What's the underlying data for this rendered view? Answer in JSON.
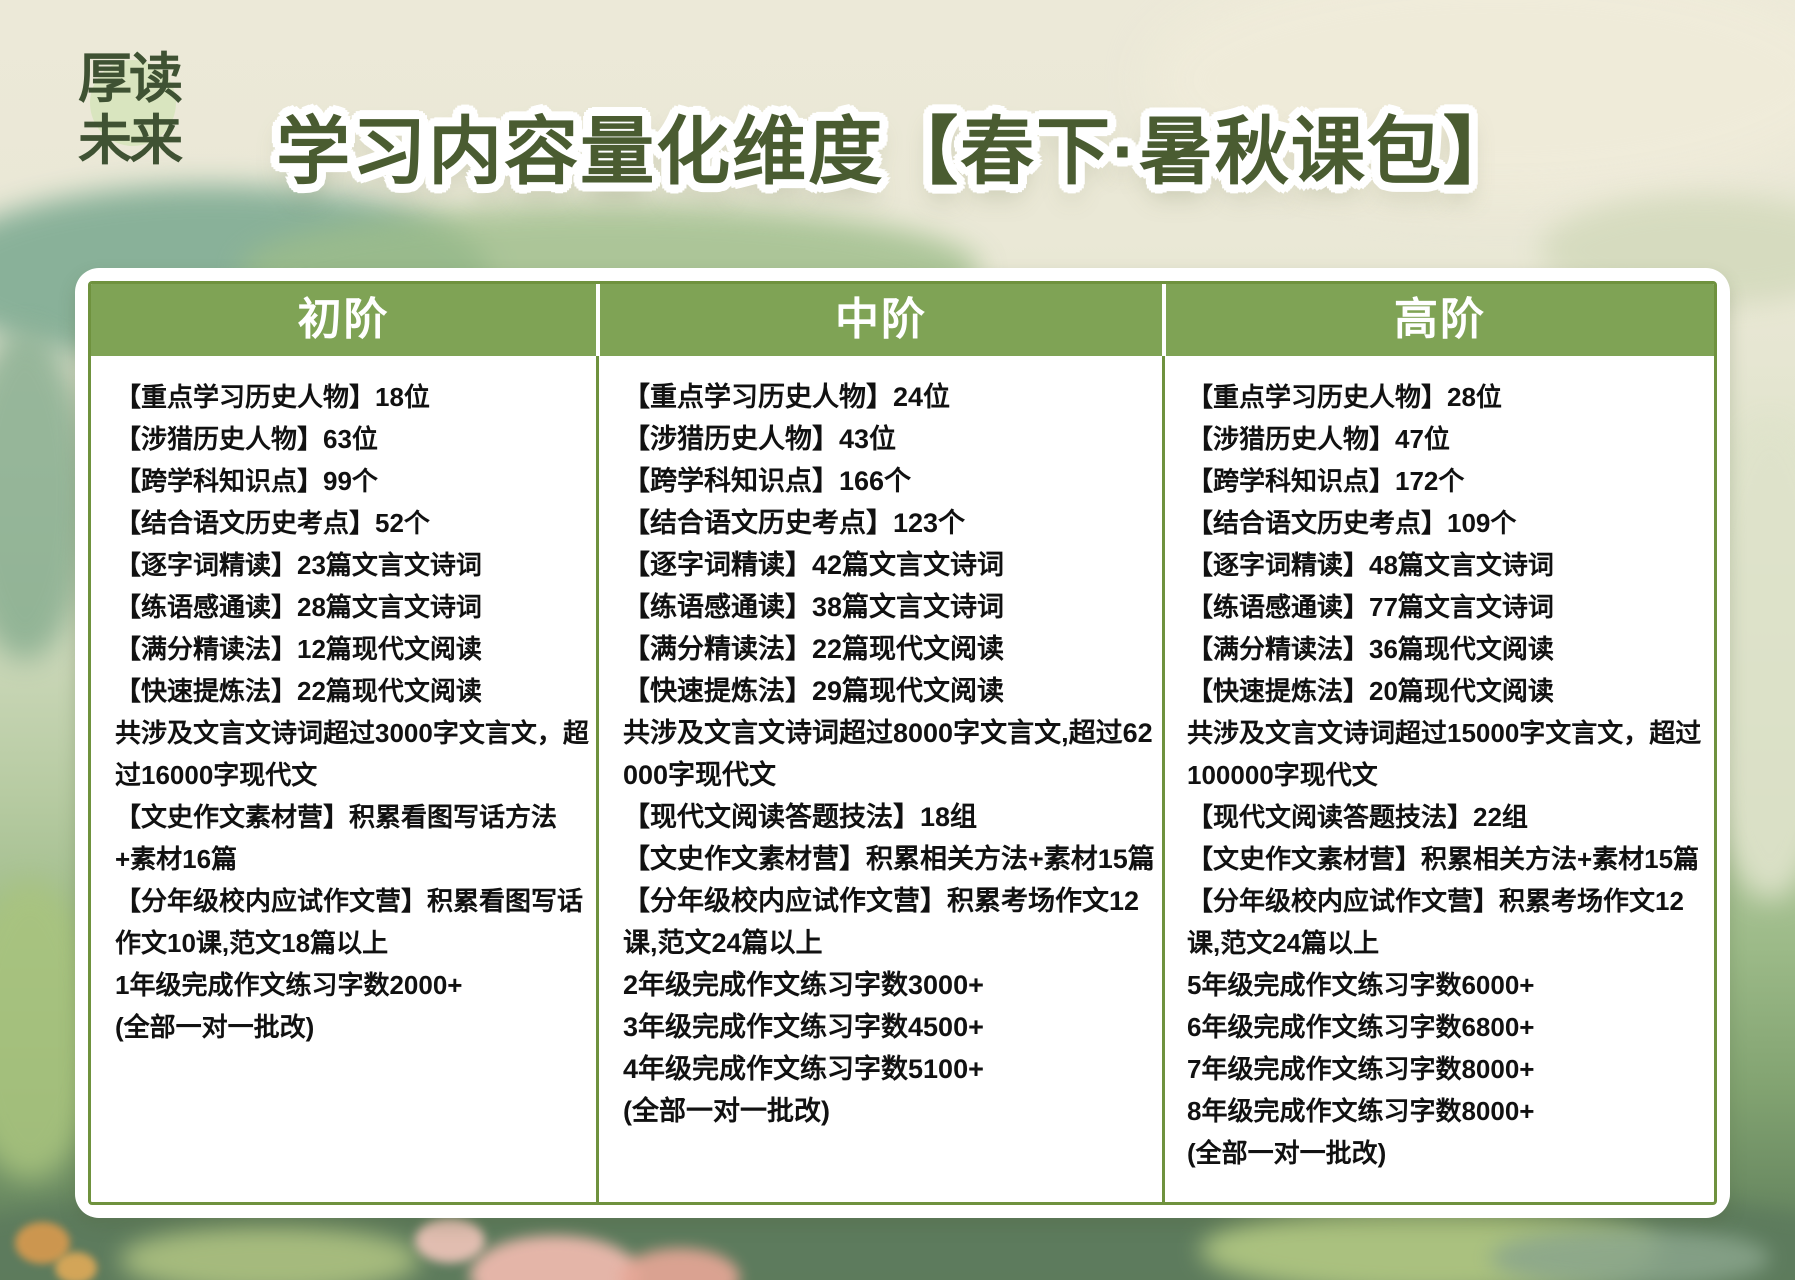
{
  "logo": {
    "line1": "厚读",
    "line2": "未来"
  },
  "title": "学习内容量化维度【春下·暑秋课包】",
  "colors": {
    "header_green": "#7fa355",
    "border_green": "#6f923e",
    "title_green": "#4a5c31",
    "logo_green": "#3f5233",
    "badge_green": "#d9e5bf",
    "body_text": "#111111",
    "card_bg": "#ffffff"
  },
  "table": {
    "columns": [
      {
        "id": "beginner",
        "header": "初阶",
        "items": [
          "【重点学习历史人物】18位",
          "【涉猎历史人物】63位",
          "【跨学科知识点】99个",
          "【结合语文历史考点】52个",
          "【逐字词精读】23篇文言文诗词",
          "【练语感通读】28篇文言文诗词",
          "【满分精读法】12篇现代文阅读",
          "【快速提炼法】22篇现代文阅读",
          "共涉及文言文诗词超过3000字文言文，超过16000字现代文",
          "【文史作文素材营】积累看图写话方法+素材16篇",
          "【分年级校内应试作文营】积累看图写话作文10课,范文18篇以上",
          "1年级完成作文练习字数2000+",
          "(全部一对一批改)"
        ]
      },
      {
        "id": "intermediate",
        "header": "中阶",
        "items": [
          "【重点学习历史人物】24位",
          "【涉猎历史人物】43位",
          "【跨学科知识点】166个",
          "【结合语文历史考点】123个",
          "【逐字词精读】42篇文言文诗词",
          "【练语感通读】38篇文言文诗词",
          "【满分精读法】22篇现代文阅读",
          "【快速提炼法】29篇现代文阅读",
          "共涉及文言文诗词超过8000字文言文,超过62000字现代文",
          "【现代文阅读答题技法】18组",
          "【文史作文素材营】积累相关方法+素材15篇",
          "【分年级校内应试作文营】积累考场作文12课,范文24篇以上",
          "2年级完成作文练习字数3000+",
          "3年级完成作文练习字数4500+",
          "4年级完成作文练习字数5100+",
          "(全部一对一批改)"
        ]
      },
      {
        "id": "advanced",
        "header": "高阶",
        "items": [
          "【重点学习历史人物】28位",
          "【涉猎历史人物】47位",
          "【跨学科知识点】172个",
          "【结合语文历史考点】109个",
          "【逐字词精读】48篇文言文诗词",
          "【练语感通读】77篇文言文诗词",
          "【满分精读法】36篇现代文阅读",
          "【快速提炼法】20篇现代文阅读",
          "共涉及文言文诗词超过15000字文言文，超过100000字现代文",
          "【现代文阅读答题技法】22组",
          "【文史作文素材营】积累相关方法+素材15篇",
          "【分年级校内应试作文营】积累考场作文12课,范文24篇以上",
          "5年级完成作文练习字数6000+",
          "6年级完成作文练习字数6800+",
          "7年级完成作文练习字数8000+",
          "8年级完成作文练习字数8000+",
          "(全部一对一批改)"
        ]
      }
    ]
  }
}
